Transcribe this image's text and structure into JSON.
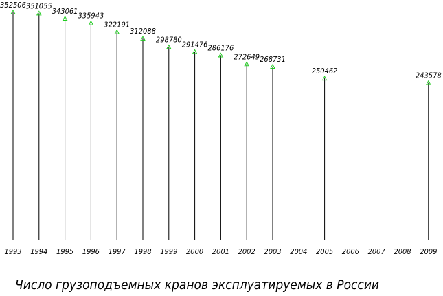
{
  "chart_data": {
    "type": "stem",
    "title": "Число грузоподъемных кранов эксплуатируемых в России",
    "categories": [
      "1993",
      "1994",
      "1995",
      "1996",
      "1997",
      "1998",
      "1999",
      "2000",
      "2001",
      "2002",
      "2003",
      "2004",
      "2005",
      "2006",
      "2007",
      "2008",
      "2009"
    ],
    "values": [
      352506,
      351055,
      343061,
      335943,
      322191,
      312088,
      298780,
      291476,
      286176,
      272649,
      268731,
      null,
      250462,
      null,
      null,
      null,
      243578
    ],
    "color": "#000000",
    "marker_color": "#22cc22",
    "ylim": [
      0,
      360000
    ]
  }
}
